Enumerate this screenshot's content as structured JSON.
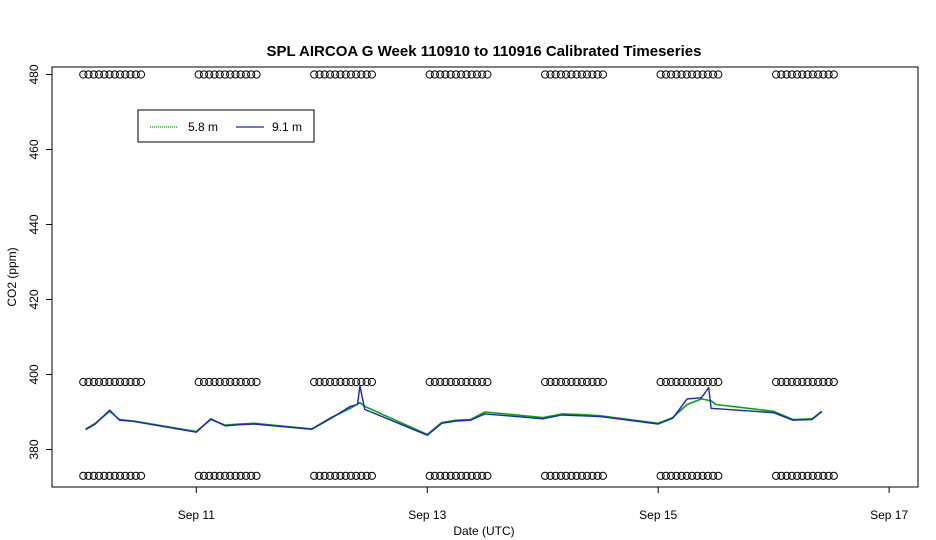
{
  "chart_data": {
    "type": "line",
    "title": "SPL AIRCOA G  Week 110910 to 110916  Calibrated Timeseries",
    "xlabel": "Date (UTC)",
    "ylabel": "CO2 (ppm)",
    "x_type": "date",
    "x_tick_labels": [
      "Sep 11",
      "Sep 13",
      "Sep 15",
      "Sep 17"
    ],
    "x_tick_values": [
      "2011-09-11",
      "2011-09-13",
      "2011-09-15",
      "2011-09-17"
    ],
    "xlim": [
      "2011-09-09T18:00",
      "2011-09-17T06:00"
    ],
    "y_ticks": [
      380,
      400,
      420,
      440,
      460,
      480
    ],
    "ylim": [
      370,
      482
    ],
    "grid": false,
    "legend_position": "top-left",
    "colors": {
      "5.8 m": "#00aa00",
      "9.1 m": "#1f1fcc"
    },
    "series": [
      {
        "name": "5.8 m",
        "x": [
          "2011-09-10T01:00",
          "2011-09-10T03:00",
          "2011-09-10T06:00",
          "2011-09-10T08:00",
          "2011-09-10T11:00",
          "2011-09-11T00:00",
          "2011-09-11T03:00",
          "2011-09-11T06:00",
          "2011-09-11T09:00",
          "2011-09-11T12:00",
          "2011-09-12T00:00",
          "2011-09-12T04:00",
          "2011-09-12T08:00",
          "2011-09-12T10:00",
          "2011-09-12T11:00",
          "2011-09-13T00:00",
          "2011-09-13T03:00",
          "2011-09-13T06:00",
          "2011-09-13T09:00",
          "2011-09-13T12:00",
          "2011-09-14T00:00",
          "2011-09-14T04:00",
          "2011-09-14T08:00",
          "2011-09-14T12:00",
          "2011-09-15T00:00",
          "2011-09-15T03:00",
          "2011-09-15T06:00",
          "2011-09-15T09:00",
          "2011-09-15T11:00",
          "2011-09-15T12:00",
          "2011-09-16T00:00",
          "2011-09-16T04:00",
          "2011-09-16T08:00",
          "2011-09-16T10:00"
        ],
        "values": [
          385.5,
          387.0,
          390.2,
          388.0,
          387.6,
          384.8,
          388.0,
          386.5,
          386.8,
          387.0,
          385.5,
          388.5,
          391.0,
          392.5,
          391.5,
          384.0,
          387.2,
          387.8,
          388.0,
          390.0,
          388.5,
          389.5,
          389.3,
          389.0,
          387.0,
          388.5,
          392.0,
          393.5,
          393.0,
          392.0,
          390.2,
          388.0,
          388.2,
          390.2
        ]
      },
      {
        "name": "9.1 m",
        "x": [
          "2011-09-10T01:00",
          "2011-09-10T03:00",
          "2011-09-10T06:00",
          "2011-09-10T08:00",
          "2011-09-10T11:00",
          "2011-09-11T00:00",
          "2011-09-11T03:00",
          "2011-09-11T06:00",
          "2011-09-11T09:00",
          "2011-09-11T12:00",
          "2011-09-12T00:00",
          "2011-09-12T04:00",
          "2011-09-12T08:00",
          "2011-09-12T09:30",
          "2011-09-12T10:00",
          "2011-09-12T11:00",
          "2011-09-13T00:00",
          "2011-09-13T03:00",
          "2011-09-13T06:00",
          "2011-09-13T09:00",
          "2011-09-13T12:00",
          "2011-09-14T00:00",
          "2011-09-14T04:00",
          "2011-09-14T08:00",
          "2011-09-14T12:00",
          "2011-09-15T00:00",
          "2011-09-15T03:00",
          "2011-09-15T06:00",
          "2011-09-15T09:00",
          "2011-09-15T10:30",
          "2011-09-15T11:00",
          "2011-09-16T00:00",
          "2011-09-16T04:00",
          "2011-09-16T08:00",
          "2011-09-16T10:00"
        ],
        "values": [
          385.3,
          386.8,
          390.5,
          387.8,
          387.5,
          384.6,
          388.2,
          386.3,
          386.6,
          386.8,
          385.4,
          388.3,
          391.5,
          392.0,
          397.0,
          390.7,
          383.8,
          387.0,
          387.6,
          387.8,
          389.5,
          388.2,
          389.2,
          389.0,
          388.8,
          386.8,
          388.3,
          393.5,
          393.8,
          396.5,
          391.0,
          389.8,
          387.8,
          388.0,
          390.1
        ]
      }
    ],
    "marker_rows": {
      "marker": "o",
      "y_levels": [
        373,
        398,
        480
      ],
      "day_groups": [
        {
          "start": "2011-09-10T00:30",
          "end": "2011-09-10T12:30",
          "count": 12
        },
        {
          "start": "2011-09-11T00:30",
          "end": "2011-09-11T12:30",
          "count": 12
        },
        {
          "start": "2011-09-12T00:30",
          "end": "2011-09-12T12:30",
          "count": 12
        },
        {
          "start": "2011-09-13T00:30",
          "end": "2011-09-13T12:30",
          "count": 12
        },
        {
          "start": "2011-09-14T00:30",
          "end": "2011-09-14T12:30",
          "count": 12
        },
        {
          "start": "2011-09-15T00:30",
          "end": "2011-09-15T12:30",
          "count": 12
        },
        {
          "start": "2011-09-16T00:30",
          "end": "2011-09-16T12:30",
          "count": 12
        }
      ]
    }
  }
}
